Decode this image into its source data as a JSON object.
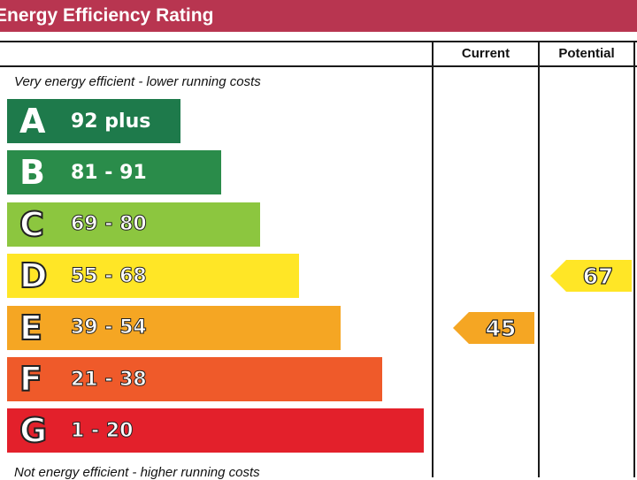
{
  "header": {
    "title": "Energy Efficiency Rating"
  },
  "columns": {
    "current": "Current",
    "potential": "Potential"
  },
  "captions": {
    "top": "Very energy efficient - lower running costs",
    "bottom": "Not energy efficient - higher running costs"
  },
  "chart_data": {
    "type": "bar",
    "categories": [
      "A",
      "B",
      "C",
      "D",
      "E",
      "F",
      "G"
    ],
    "ranges": [
      "92 plus",
      "81 - 91",
      "69 - 80",
      "55 - 68",
      "39 - 54",
      "21 - 38",
      "1 - 20"
    ],
    "colors": [
      "#1e7a4b",
      "#2a8c4a",
      "#8cc63f",
      "#ffe626",
      "#f5a623",
      "#ef5a2a",
      "#e3202b"
    ],
    "current": {
      "value": 45,
      "band": "E",
      "color": "#f5a623"
    },
    "potential": {
      "value": 67,
      "band": "D",
      "color": "#ffe626"
    }
  }
}
